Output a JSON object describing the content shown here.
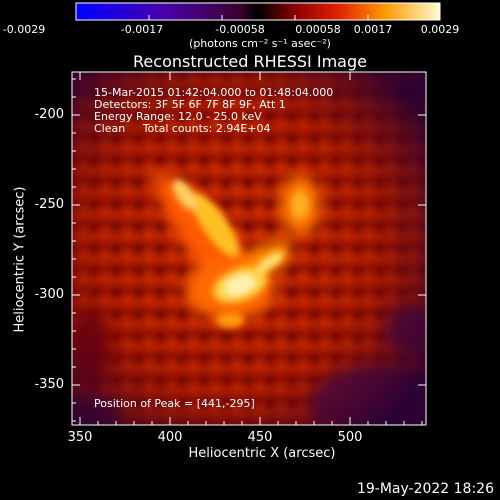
{
  "colorbar": {
    "ticks": [
      "-0.0029",
      "-0.0017",
      "-0.00058",
      "0.00058",
      "0.0017",
      "0.0029"
    ],
    "units": "(photons cm⁻² s⁻¹ asec⁻²)"
  },
  "title": "Reconstructed RHESSI Image",
  "overlay": {
    "line1": "15-Mar-2015 01:42:04.000 to 01:48:04.000",
    "line2": "Detectors: 3F 5F 6F 7F 8F 9F, Att 1",
    "line3": "Energy Range: 12.0 - 25.0 keV",
    "line4": "Clean     Total counts: 2.94E+04",
    "peak": "Position of Peak = [441,-295]"
  },
  "axes": {
    "xlabel": "Heliocentric X (arcsec)",
    "ylabel": "Heliocentric Y (arcsec)",
    "xticks": [
      "350",
      "400",
      "450",
      "500"
    ],
    "yticks": [
      "-200",
      "-250",
      "-300",
      "-350"
    ]
  },
  "footer": "19-May-2022 18:26"
}
